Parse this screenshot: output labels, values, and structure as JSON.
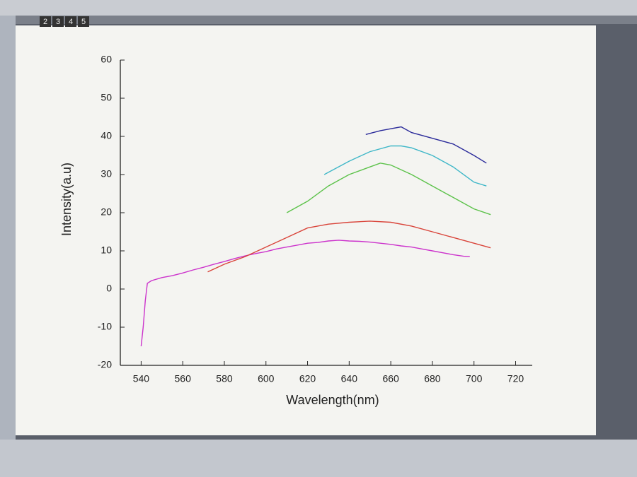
{
  "layer_tabs": [
    "2",
    "3",
    "4",
    "5"
  ],
  "chart_data": {
    "type": "line",
    "x_label": "Wavelength(nm)",
    "y_label": "Intensity(a.u)",
    "xlim": [
      530,
      728
    ],
    "ylim": [
      -20,
      60
    ],
    "xticks": [
      540,
      560,
      580,
      600,
      620,
      640,
      660,
      680,
      700,
      720
    ],
    "yticks": [
      -20,
      -10,
      0,
      10,
      20,
      30,
      40,
      50,
      60
    ],
    "series": [
      {
        "color": "#cc33cc",
        "x": [
          540,
          541,
          542,
          543,
          545,
          550,
          555,
          560,
          565,
          570,
          575,
          580,
          585,
          590,
          595,
          600,
          605,
          610,
          615,
          620,
          625,
          630,
          635,
          640,
          645,
          650,
          655,
          660,
          665,
          670,
          675,
          680,
          685,
          690,
          695,
          698
        ],
        "values": [
          -15,
          -10,
          -3,
          1.5,
          2.2,
          3,
          3.5,
          4.2,
          5,
          5.7,
          6.5,
          7.2,
          8,
          8.7,
          9.3,
          9.8,
          10.5,
          11,
          11.5,
          12,
          12.2,
          12.6,
          12.8,
          12.6,
          12.5,
          12.3,
          12,
          11.7,
          11.3,
          11,
          10.5,
          10,
          9.5,
          9,
          8.6,
          8.5
        ]
      },
      {
        "color": "#d9443a",
        "x": [
          572,
          580,
          590,
          600,
          610,
          620,
          630,
          640,
          650,
          660,
          670,
          680,
          690,
          700,
          708
        ],
        "values": [
          4.5,
          6.5,
          8.5,
          11,
          13.5,
          16,
          17,
          17.5,
          17.8,
          17.5,
          16.5,
          15,
          13.5,
          12,
          10.8
        ]
      },
      {
        "color": "#5cc24a",
        "x": [
          610,
          620,
          630,
          640,
          650,
          655,
          660,
          670,
          680,
          690,
          700,
          708
        ],
        "values": [
          20,
          23,
          27,
          30,
          32,
          33,
          32.5,
          30,
          27,
          24,
          21,
          19.5
        ]
      },
      {
        "color": "#3fb7c8",
        "x": [
          628,
          640,
          650,
          660,
          665,
          670,
          680,
          690,
          700,
          706
        ],
        "values": [
          30,
          33.5,
          36,
          37.5,
          37.5,
          37,
          35,
          32,
          28,
          27
        ]
      },
      {
        "color": "#2a2a9a",
        "x": [
          648,
          655,
          660,
          665,
          670,
          680,
          690,
          700,
          706
        ],
        "values": [
          40.5,
          41.5,
          42,
          42.5,
          41,
          39.5,
          38,
          35,
          33
        ]
      }
    ]
  }
}
